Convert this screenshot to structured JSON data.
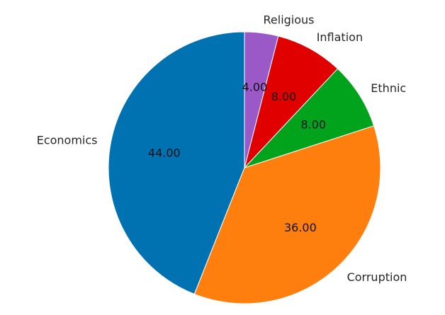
{
  "chart_data": {
    "type": "pie",
    "title": "",
    "slices": [
      {
        "label": "Economics",
        "value": 44.0,
        "value_label": "44.00",
        "color": "#0072b2"
      },
      {
        "label": "Corruption",
        "value": 36.0,
        "value_label": "36.00",
        "color": "#ff7f0e"
      },
      {
        "label": "Ethnic",
        "value": 8.0,
        "value_label": "8.00",
        "color": "#00a31b"
      },
      {
        "label": "Inflation",
        "value": 8.0,
        "value_label": "8.00",
        "color": "#e10000"
      },
      {
        "label": "Religious",
        "value": 4.0,
        "value_label": "4.00",
        "color": "#9b59c7"
      }
    ],
    "start_angle_deg": 90,
    "direction": "counterclockwise",
    "legend": "none"
  }
}
